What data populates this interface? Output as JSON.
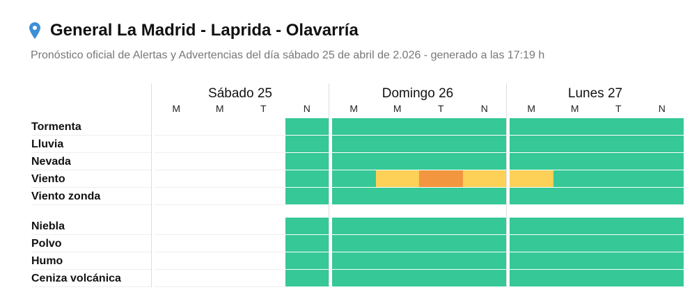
{
  "title": "General La Madrid - Laprida - Olavarría",
  "subtitle": "Pronóstico oficial de Alertas y Advertencias del día sábado 25 de abril de 2.026 - generado a las 17:19 h",
  "colors": {
    "none": "#36c896",
    "yellow": "#fdd058",
    "orange": "#f29640",
    "pin": "#3d8fd6"
  },
  "days": [
    {
      "name": "Sábado 25",
      "periods": [
        "M",
        "M",
        "T",
        "N"
      ]
    },
    {
      "name": "Domingo 26",
      "periods": [
        "M",
        "M",
        "T",
        "N"
      ]
    },
    {
      "name": "Lunes 27",
      "periods": [
        "M",
        "M",
        "T",
        "N"
      ]
    }
  ],
  "groups": [
    [
      {
        "label": "Tormenta",
        "levels": [
          null,
          null,
          null,
          "none",
          "none",
          "none",
          "none",
          "none",
          "none",
          "none",
          "none",
          "none"
        ]
      },
      {
        "label": "Lluvia",
        "levels": [
          null,
          null,
          null,
          "none",
          "none",
          "none",
          "none",
          "none",
          "none",
          "none",
          "none",
          "none"
        ]
      },
      {
        "label": "Nevada",
        "levels": [
          null,
          null,
          null,
          "none",
          "none",
          "none",
          "none",
          "none",
          "none",
          "none",
          "none",
          "none"
        ]
      },
      {
        "label": "Viento",
        "levels": [
          null,
          null,
          null,
          "none",
          "none",
          "yellow",
          "orange",
          "yellow",
          "yellow",
          "none",
          "none",
          "none"
        ]
      },
      {
        "label": "Viento zonda",
        "levels": [
          null,
          null,
          null,
          "none",
          "none",
          "none",
          "none",
          "none",
          "none",
          "none",
          "none",
          "none"
        ]
      }
    ],
    [
      {
        "label": "Niebla",
        "levels": [
          null,
          null,
          null,
          "none",
          "none",
          "none",
          "none",
          "none",
          "none",
          "none",
          "none",
          "none"
        ]
      },
      {
        "label": "Polvo",
        "levels": [
          null,
          null,
          null,
          "none",
          "none",
          "none",
          "none",
          "none",
          "none",
          "none",
          "none",
          "none"
        ]
      },
      {
        "label": "Humo",
        "levels": [
          null,
          null,
          null,
          "none",
          "none",
          "none",
          "none",
          "none",
          "none",
          "none",
          "none",
          "none"
        ]
      },
      {
        "label": "Ceniza volcánica",
        "levels": [
          null,
          null,
          null,
          "none",
          "none",
          "none",
          "none",
          "none",
          "none",
          "none",
          "none",
          "none"
        ]
      }
    ]
  ]
}
